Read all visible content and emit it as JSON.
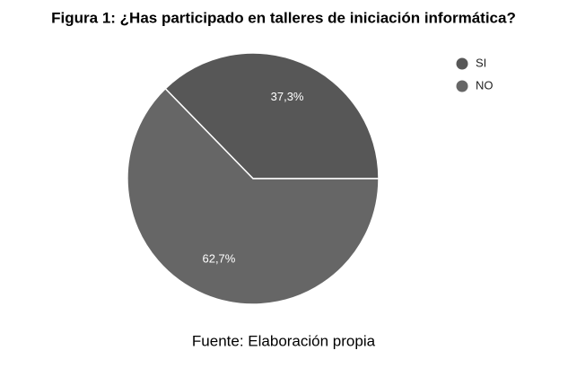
{
  "chart_data": {
    "type": "pie",
    "title": "Figura 1: ¿Has participado en talleres de iniciación informática?",
    "categories": [
      "SI",
      "NO"
    ],
    "values": [
      37.3,
      62.7
    ],
    "value_labels": [
      "37,3%",
      "62,7%"
    ],
    "colors": [
      "#575757",
      "#666666"
    ],
    "legend": "top-right",
    "source": "Fuente: Elaboración propia"
  }
}
